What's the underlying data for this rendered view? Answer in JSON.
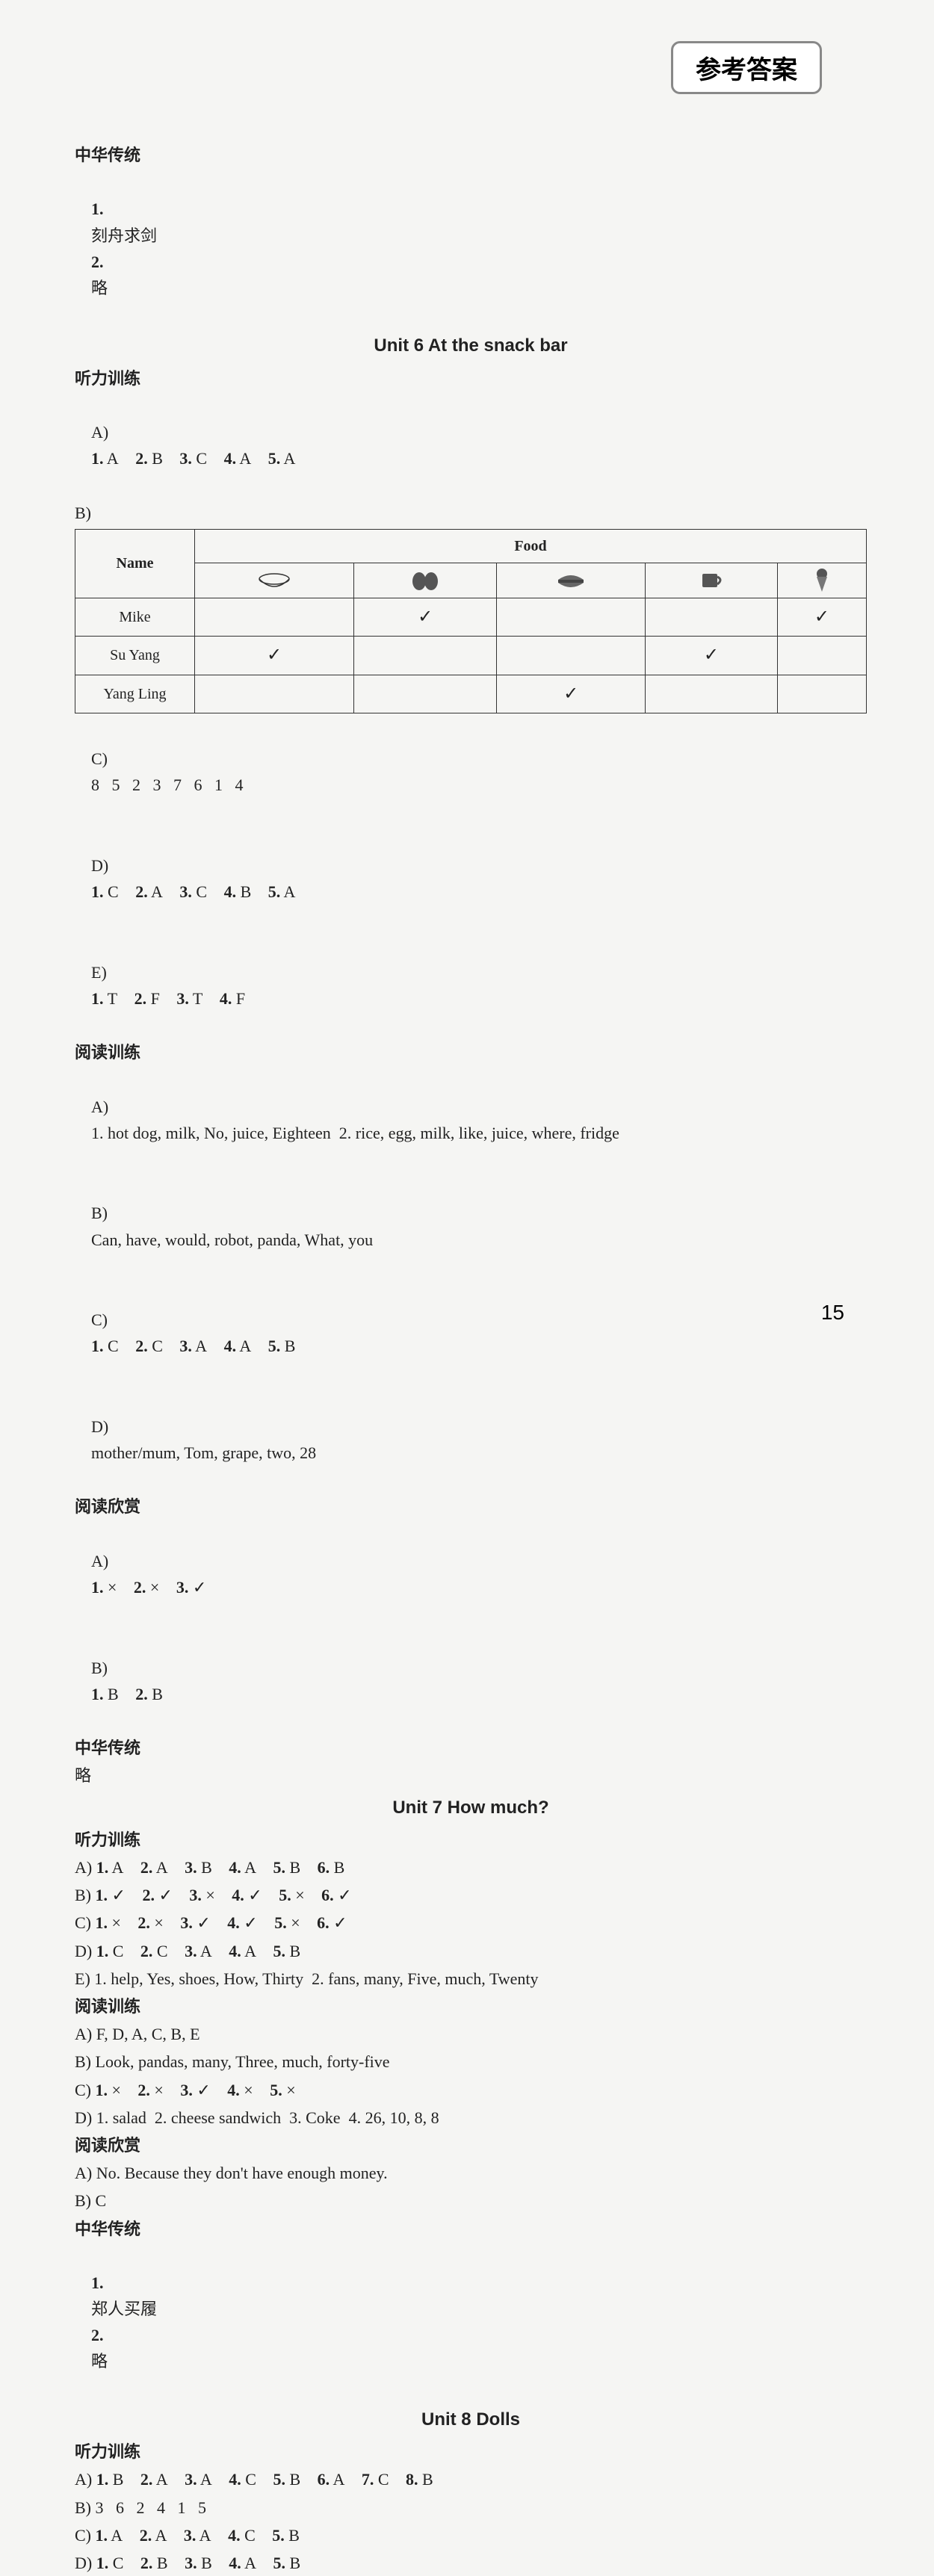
{
  "badge": "参考答案",
  "page_number": "15",
  "colors": {
    "text": "#222222",
    "border": "#333333",
    "bg": "#f5f5f3"
  },
  "pre_unit6": {
    "heading": "中华传统",
    "items": [
      {
        "num": "1.",
        "val": "刻舟求剑"
      },
      {
        "num": "2.",
        "val": "略"
      }
    ]
  },
  "unit6": {
    "title": "Unit 6    At the snack bar",
    "listening_label": "听力训练",
    "A": {
      "prefix": "A)",
      "items": [
        {
          "num": "1.",
          "val": "A"
        },
        {
          "num": "2.",
          "val": "B"
        },
        {
          "num": "3.",
          "val": "C"
        },
        {
          "num": "4.",
          "val": "A"
        },
        {
          "num": "5.",
          "val": "A"
        }
      ]
    },
    "B_prefix": "B)",
    "table": {
      "name_header": "Name",
      "food_header": "Food",
      "food_icons": [
        "bowl",
        "eggs",
        "burger",
        "cup",
        "icecream"
      ],
      "rows": [
        {
          "name": "Mike",
          "checks": [
            false,
            true,
            false,
            false,
            true
          ]
        },
        {
          "name": "Su Yang",
          "checks": [
            true,
            false,
            false,
            true,
            false
          ]
        },
        {
          "name": "Yang Ling",
          "checks": [
            false,
            false,
            true,
            false,
            false
          ]
        }
      ]
    },
    "C": {
      "prefix": "C)",
      "seq": "8   5   2   3   7   6   1   4"
    },
    "D": {
      "prefix": "D)",
      "items": [
        {
          "num": "1.",
          "val": "C"
        },
        {
          "num": "2.",
          "val": "A"
        },
        {
          "num": "3.",
          "val": "C"
        },
        {
          "num": "4.",
          "val": "B"
        },
        {
          "num": "5.",
          "val": "A"
        }
      ]
    },
    "E": {
      "prefix": "E)",
      "items": [
        {
          "num": "1.",
          "val": "T"
        },
        {
          "num": "2.",
          "val": "F"
        },
        {
          "num": "3.",
          "val": "T"
        },
        {
          "num": "4.",
          "val": "F"
        }
      ]
    },
    "reading_label": "阅读训练",
    "rA": {
      "prefix": "A)",
      "text": "1. hot dog, milk, No, juice, Eighteen  2. rice, egg, milk, like, juice, where, fridge"
    },
    "rB": {
      "prefix": "B)",
      "text": "Can, have, would, robot, panda, What, you"
    },
    "rC": {
      "prefix": "C)",
      "items": [
        {
          "num": "1.",
          "val": "C"
        },
        {
          "num": "2.",
          "val": "C"
        },
        {
          "num": "3.",
          "val": "A"
        },
        {
          "num": "4.",
          "val": "A"
        },
        {
          "num": "5.",
          "val": "B"
        }
      ]
    },
    "rD": {
      "prefix": "D)",
      "text": "mother/mum, Tom, grape, two, 28"
    },
    "appreciate_label": "阅读欣赏",
    "aA": {
      "prefix": "A)",
      "items": [
        {
          "num": "1.",
          "val": "×"
        },
        {
          "num": "2.",
          "val": "×"
        },
        {
          "num": "3.",
          "val": "✓"
        }
      ]
    },
    "aB": {
      "prefix": "B)",
      "items": [
        {
          "num": "1.",
          "val": "B"
        },
        {
          "num": "2.",
          "val": "B"
        }
      ]
    },
    "tradition_label": "中华传统",
    "tradition_text": "略"
  },
  "unit7": {
    "title": "Unit 7    How much?",
    "listening_label": "听力训练",
    "A": {
      "prefix": "A)",
      "items": [
        {
          "num": "1.",
          "val": "A"
        },
        {
          "num": "2.",
          "val": "A"
        },
        {
          "num": "3.",
          "val": "B"
        },
        {
          "num": "4.",
          "val": "A"
        },
        {
          "num": "5.",
          "val": "B"
        },
        {
          "num": "6.",
          "val": "B"
        }
      ]
    },
    "B": {
      "prefix": "B)",
      "items": [
        {
          "num": "1.",
          "val": "✓"
        },
        {
          "num": "2.",
          "val": "✓"
        },
        {
          "num": "3.",
          "val": "×"
        },
        {
          "num": "4.",
          "val": "✓"
        },
        {
          "num": "5.",
          "val": "×"
        },
        {
          "num": "6.",
          "val": "✓"
        }
      ]
    },
    "C": {
      "prefix": "C)",
      "items": [
        {
          "num": "1.",
          "val": "×"
        },
        {
          "num": "2.",
          "val": "×"
        },
        {
          "num": "3.",
          "val": "✓"
        },
        {
          "num": "4.",
          "val": "✓"
        },
        {
          "num": "5.",
          "val": "×"
        },
        {
          "num": "6.",
          "val": "✓"
        }
      ]
    },
    "D": {
      "prefix": "D)",
      "items": [
        {
          "num": "1.",
          "val": "C"
        },
        {
          "num": "2.",
          "val": "C"
        },
        {
          "num": "3.",
          "val": "A"
        },
        {
          "num": "4.",
          "val": "A"
        },
        {
          "num": "5.",
          "val": "B"
        }
      ]
    },
    "E": {
      "prefix": "E)",
      "text": "1. help, Yes, shoes, How, Thirty  2. fans, many, Five, much, Twenty"
    },
    "reading_label": "阅读训练",
    "rA": {
      "prefix": "A)",
      "text": "F, D, A, C, B, E"
    },
    "rB": {
      "prefix": "B)",
      "text": "Look, pandas, many, Three, much, forty-five"
    },
    "rC": {
      "prefix": "C)",
      "items": [
        {
          "num": "1.",
          "val": "×"
        },
        {
          "num": "2.",
          "val": "×"
        },
        {
          "num": "3.",
          "val": "✓"
        },
        {
          "num": "4.",
          "val": "×"
        },
        {
          "num": "5.",
          "val": "×"
        }
      ]
    },
    "rD": {
      "prefix": "D)",
      "text": "1. salad  2. cheese sandwich  3. Coke  4. 26, 10, 8, 8"
    },
    "appreciate_label": "阅读欣赏",
    "aA": {
      "prefix": "A)",
      "text": "No. Because they don't have enough money."
    },
    "aB": {
      "prefix": "B)",
      "text": "C"
    },
    "tradition_label": "中华传统",
    "tradition_items": [
      {
        "num": "1.",
        "val": "郑人买履"
      },
      {
        "num": "2.",
        "val": "略"
      }
    ]
  },
  "unit8": {
    "title": "Unit 8    Dolls",
    "listening_label": "听力训练",
    "A": {
      "prefix": "A)",
      "items": [
        {
          "num": "1.",
          "val": "B"
        },
        {
          "num": "2.",
          "val": "A"
        },
        {
          "num": "3.",
          "val": "A"
        },
        {
          "num": "4.",
          "val": "C"
        },
        {
          "num": "5.",
          "val": "B"
        },
        {
          "num": "6.",
          "val": "A"
        },
        {
          "num": "7.",
          "val": "C"
        },
        {
          "num": "8.",
          "val": "B"
        }
      ]
    },
    "B": {
      "prefix": "B)",
      "seq": "3   6   2   4   1   5"
    },
    "C": {
      "prefix": "C)",
      "items": [
        {
          "num": "1.",
          "val": "A"
        },
        {
          "num": "2.",
          "val": "A"
        },
        {
          "num": "3.",
          "val": "A"
        },
        {
          "num": "4.",
          "val": "C"
        },
        {
          "num": "5.",
          "val": "B"
        }
      ]
    },
    "D": {
      "prefix": "D)",
      "items": [
        {
          "num": "1.",
          "val": "C"
        },
        {
          "num": "2.",
          "val": "B"
        },
        {
          "num": "3.",
          "val": "B"
        },
        {
          "num": "4.",
          "val": "A"
        },
        {
          "num": "5.",
          "val": "B"
        }
      ]
    }
  }
}
